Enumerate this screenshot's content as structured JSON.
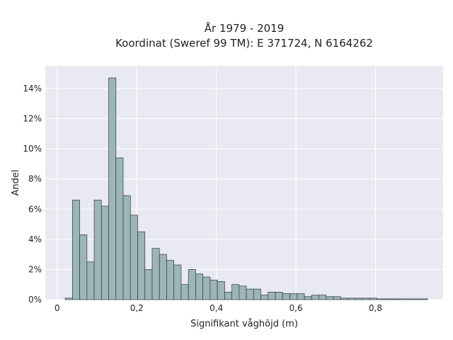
{
  "chart_data": {
    "type": "bar",
    "title": "År 1979 - 2019",
    "subtitle": "Koordinat (Sweref 99 TM): E 371724, N 6164262",
    "xlabel": "Signifikant våghöjd (m)",
    "ylabel": "Andel",
    "xlim": [
      -0.03,
      0.97
    ],
    "ylim": [
      0,
      0.155
    ],
    "x_ticks": [
      0,
      0.2,
      0.4,
      0.6,
      0.8
    ],
    "x_tick_labels": [
      "0",
      "0,2",
      "0,4",
      "0,6",
      "0,8"
    ],
    "y_ticks": [
      0,
      0.02,
      0.04,
      0.06,
      0.08,
      0.1,
      0.12,
      0.14
    ],
    "y_tick_labels": [
      "0%",
      "2%",
      "4%",
      "6%",
      "8%",
      "10%",
      "12%",
      "14%"
    ],
    "grid": true,
    "bin_start": 0.02,
    "bin_width": 0.01822,
    "values": [
      0.001,
      0.066,
      0.043,
      0.025,
      0.066,
      0.062,
      0.147,
      0.094,
      0.069,
      0.056,
      0.045,
      0.02,
      0.034,
      0.03,
      0.026,
      0.023,
      0.01,
      0.02,
      0.017,
      0.015,
      0.013,
      0.012,
      0.005,
      0.01,
      0.009,
      0.007,
      0.007,
      0.003,
      0.005,
      0.005,
      0.004,
      0.004,
      0.004,
      0.002,
      0.003,
      0.003,
      0.002,
      0.002,
      0.001,
      0.001,
      0.001,
      0.001,
      0.001,
      0.0005,
      0.0005,
      0.0005,
      0.0005,
      0.0005,
      0.0005,
      0.0005
    ],
    "colors": {
      "bar_fill": "#9db5b5",
      "bar_edge": "#2e3a3a",
      "plot_bg": "#e9e9f1",
      "grid": "#ffffff"
    }
  }
}
